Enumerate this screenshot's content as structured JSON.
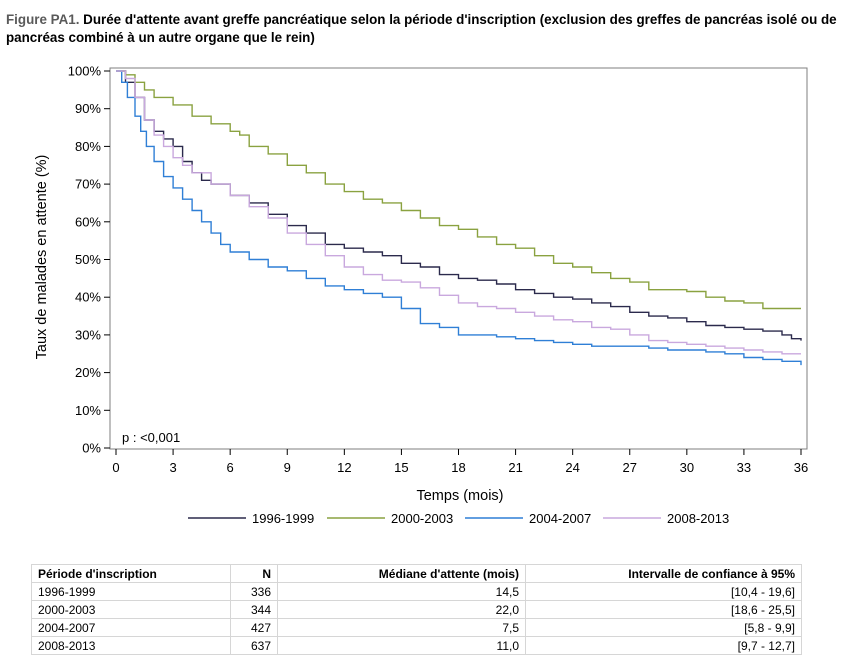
{
  "title": {
    "prefix": "Figure PA1.",
    "text": "Durée d'attente avant greffe pancréatique selon la période d'inscription (exclusion des greffes de pancréas isolé ou de pancréas combiné à un autre organe que le rein)"
  },
  "chart_data": {
    "type": "line",
    "xlabel": "Temps (mois)",
    "ylabel": "Taux de malades en attente (%)",
    "xlim": [
      0,
      36
    ],
    "ylim": [
      0,
      100
    ],
    "xticks": [
      0,
      3,
      6,
      9,
      12,
      15,
      18,
      21,
      24,
      27,
      30,
      33,
      36
    ],
    "yticks": [
      0,
      10,
      20,
      30,
      40,
      50,
      60,
      70,
      80,
      90,
      100
    ],
    "ytick_labels": [
      "0%",
      "10%",
      "20%",
      "30%",
      "40%",
      "50%",
      "60%",
      "70%",
      "80%",
      "90%",
      "100%"
    ],
    "grid": false,
    "legend_position": "bottom",
    "annotation": "p : <0,001",
    "series": [
      {
        "name": "1996-1999",
        "color": "#2b2a4c",
        "x": [
          0,
          0.5,
          1,
          1.5,
          2,
          2.5,
          3,
          3.5,
          4,
          4.5,
          5,
          6,
          7,
          8,
          9,
          10,
          11,
          12,
          13,
          14,
          15,
          16,
          17,
          18,
          19,
          20,
          21,
          22,
          23,
          24,
          25,
          26,
          27,
          28,
          29,
          30,
          31,
          32,
          33,
          34,
          35,
          35.5,
          36
        ],
        "y": [
          100,
          97,
          93,
          87,
          84,
          82,
          80,
          76,
          73,
          71,
          70,
          67,
          65,
          62,
          59,
          57,
          54,
          53,
          52,
          51,
          49,
          48,
          46,
          45,
          44.5,
          43.5,
          42,
          41,
          40,
          39.5,
          38.5,
          37.5,
          36,
          35,
          34.5,
          33.5,
          32.5,
          32,
          31.5,
          31,
          30,
          29,
          28.5
        ]
      },
      {
        "name": "2000-2003",
        "color": "#8aa240",
        "x": [
          0,
          0.5,
          1,
          1.5,
          2,
          3,
          4,
          5,
          6,
          6.5,
          7,
          8,
          9,
          10,
          11,
          12,
          13,
          14,
          15,
          16,
          17,
          18,
          19,
          20,
          21,
          22,
          23,
          24,
          25,
          26,
          27,
          28,
          29,
          30,
          31,
          32,
          33,
          34,
          35,
          36
        ],
        "y": [
          100,
          99,
          97,
          95,
          93,
          91,
          88,
          86,
          84,
          83,
          80,
          78,
          75,
          73,
          70,
          68,
          66,
          65,
          63,
          61,
          59,
          58,
          56,
          54,
          53,
          51,
          49,
          48,
          46.5,
          45,
          44,
          42,
          42,
          41.5,
          40,
          39,
          38.5,
          37,
          37,
          37
        ]
      },
      {
        "name": "2004-2007",
        "color": "#2f7fd6",
        "x": [
          0,
          0.3,
          0.6,
          1,
          1.3,
          1.6,
          2,
          2.5,
          3,
          3.5,
          4,
          4.5,
          5,
          5.5,
          6,
          7,
          8,
          9,
          10,
          11,
          12,
          13,
          14,
          15,
          16,
          17,
          18,
          19,
          20,
          21,
          22,
          23,
          24,
          25,
          26,
          27,
          28,
          29,
          30,
          31,
          32,
          33,
          34,
          35,
          36
        ],
        "y": [
          100,
          97,
          93,
          88,
          84,
          80,
          76,
          72,
          69,
          66,
          63,
          60,
          57,
          54,
          52,
          50,
          48,
          47,
          45,
          43,
          42,
          41,
          40,
          37,
          33,
          32,
          30,
          30,
          29.5,
          29,
          28.5,
          28,
          27.5,
          27,
          27,
          27,
          26.5,
          26,
          26,
          25.5,
          25,
          24,
          23.5,
          23,
          22
        ]
      },
      {
        "name": "2008-2013",
        "color": "#c9a8de",
        "x": [
          0,
          0.5,
          1,
          1.5,
          2,
          2.5,
          3,
          3.5,
          4,
          5,
          6,
          7,
          8,
          9,
          10,
          11,
          12,
          13,
          14,
          15,
          16,
          17,
          18,
          19,
          20,
          21,
          22,
          23,
          24,
          25,
          26,
          27,
          28,
          29,
          30,
          31,
          32,
          33,
          34,
          35,
          36
        ],
        "y": [
          100,
          98,
          93,
          87,
          83,
          80,
          77,
          75,
          73,
          70,
          67,
          64,
          61,
          57,
          54,
          51,
          48,
          46,
          44.5,
          44,
          42.5,
          40.5,
          38.5,
          37.5,
          37,
          36,
          35,
          34,
          33.5,
          32,
          31.5,
          30,
          28.5,
          28,
          27.5,
          27,
          26.5,
          26,
          25.5,
          25,
          25
        ]
      }
    ]
  },
  "table": {
    "headers": [
      "Période d'inscription",
      "N",
      "Médiane d'attente (mois)",
      "Intervalle de confiance à 95%"
    ],
    "rows": [
      [
        "1996-1999",
        "336",
        "14,5",
        "[10,4 - 19,6]"
      ],
      [
        "2000-2003",
        "344",
        "22,0",
        "[18,6 - 25,5]"
      ],
      [
        "2004-2007",
        "427",
        "7,5",
        "[5,8 - 9,9]"
      ],
      [
        "2008-2013",
        "637",
        "11,0",
        "[9,7 - 12,7]"
      ]
    ]
  }
}
